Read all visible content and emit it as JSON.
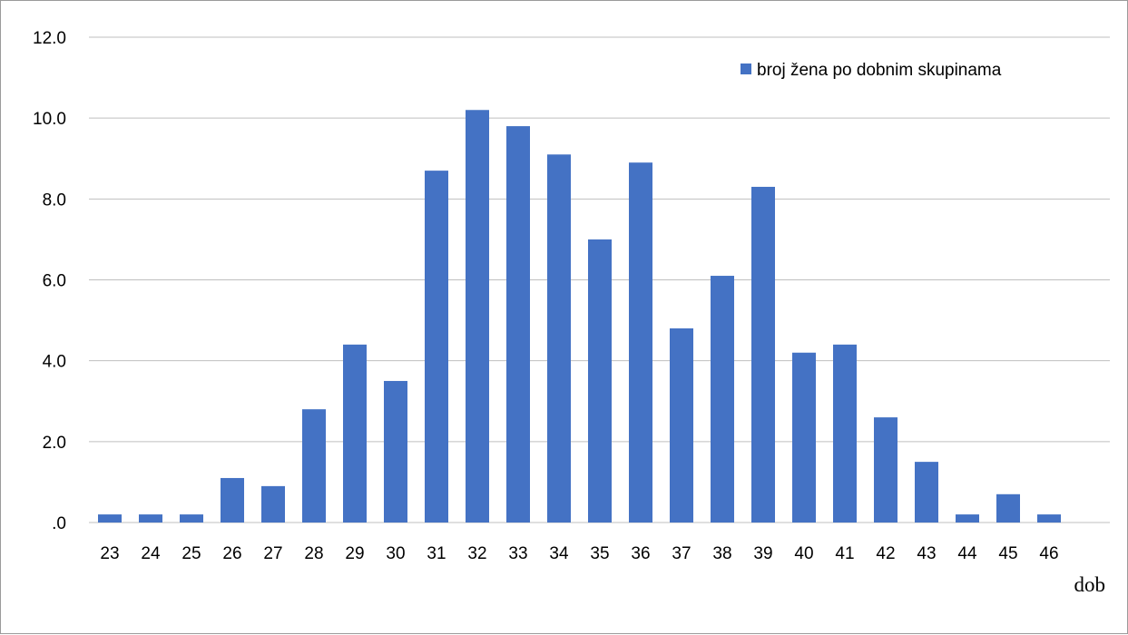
{
  "chart_data": {
    "type": "bar",
    "title": "",
    "xlabel": "dob",
    "ylabel": "",
    "ylim": [
      0,
      12
    ],
    "yticks": [
      0,
      2,
      4,
      6,
      8,
      10,
      12
    ],
    "ytick_labels": [
      ".0",
      "2.0",
      "4.0",
      "6.0",
      "8.0",
      "10.0",
      "12.0"
    ],
    "grid": true,
    "legend_position": "top-right",
    "categories": [
      "23",
      "24",
      "25",
      "26",
      "27",
      "28",
      "29",
      "30",
      "31",
      "32",
      "33",
      "34",
      "35",
      "36",
      "37",
      "38",
      "39",
      "40",
      "41",
      "42",
      "43",
      "44",
      "45",
      "46"
    ],
    "series": [
      {
        "name": "broj žena po dobnim skupinama",
        "color": "#4472c4",
        "values": [
          0.2,
          0.2,
          0.2,
          1.1,
          0.9,
          2.8,
          4.4,
          3.5,
          8.7,
          10.2,
          9.8,
          9.1,
          7.0,
          8.9,
          4.8,
          6.1,
          8.3,
          4.2,
          4.4,
          2.6,
          1.5,
          0.2,
          0.7,
          0.2
        ]
      }
    ]
  }
}
